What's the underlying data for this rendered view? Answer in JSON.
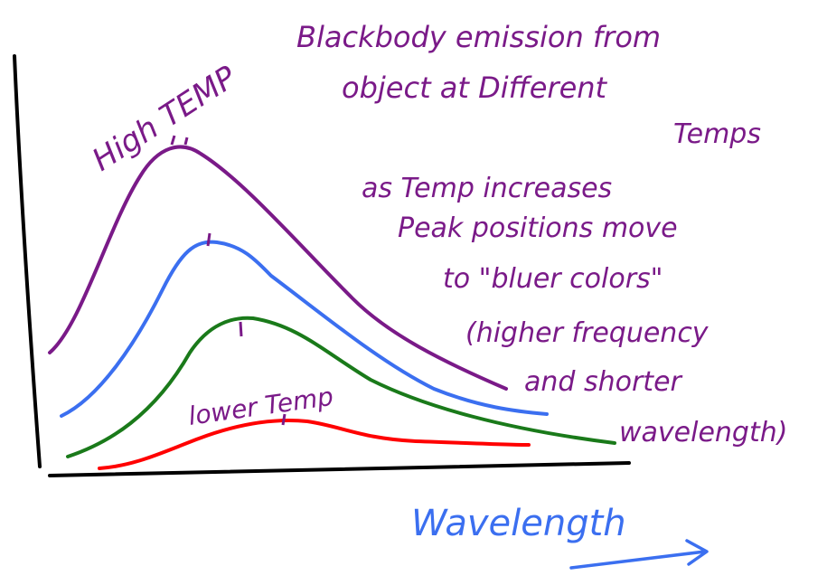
{
  "title": {
    "lines": [
      "Blackbody emission from",
      "object at Different",
      "Temps"
    ]
  },
  "curve_labels": {
    "high_temp": "High TEMP",
    "low_temp": "lower Temp"
  },
  "annotation": {
    "lines": [
      "as Temp increases",
      "Peak positions move",
      "to \"bluer colors\"",
      "(higher frequency",
      "and shorter",
      "wavelength)"
    ]
  },
  "x_axis_label": "Wavelength"
}
